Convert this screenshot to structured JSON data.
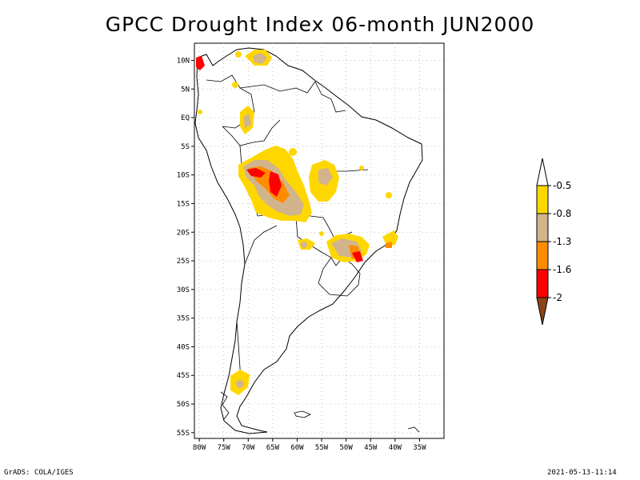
{
  "title": "GPCC Drought Index 06-month JUN2000",
  "map": {
    "lat_labels": [
      "10N",
      "5N",
      "EQ",
      "5S",
      "10S",
      "15S",
      "20S",
      "25S",
      "30S",
      "35S",
      "40S",
      "45S",
      "50S",
      "55S"
    ],
    "lon_labels": [
      "80W",
      "75W",
      "70W",
      "65W",
      "60W",
      "55W",
      "50W",
      "45W",
      "40W",
      "35W"
    ],
    "grid": true,
    "region": "South America"
  },
  "legend": {
    "placement": "right",
    "labels": [
      "-0.5",
      "-0.8",
      "-1.3",
      "-1.6",
      "-2"
    ],
    "colors": [
      "#ffffff",
      "#ffd700",
      "#d2b48c",
      "#ff8c00",
      "#ff0000",
      "#8b4513"
    ]
  },
  "footer": {
    "left": "GrADS: COLA/IGES",
    "right": "2021-05-13-11:14"
  }
}
